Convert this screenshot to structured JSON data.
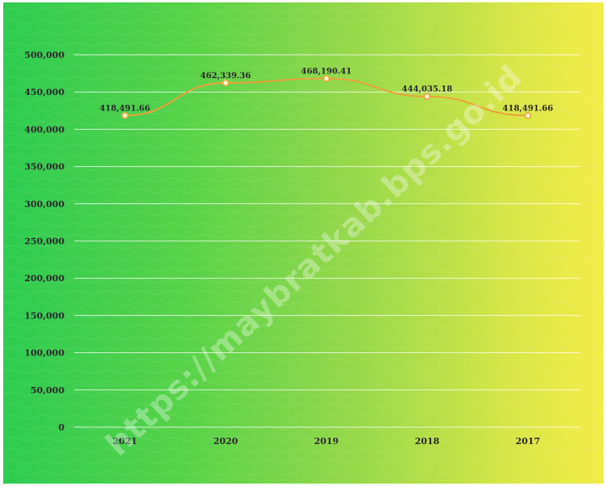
{
  "watermark": "https://maybratkab.bps.go.id",
  "colors": {
    "line": "#e8a33a",
    "marker_fill": "#fff6c8",
    "marker_stroke": "#e8a33a",
    "grid": "#ffffff"
  },
  "chart_data": {
    "type": "line",
    "categories": [
      "2021",
      "2020",
      "2019",
      "2018",
      "2017"
    ],
    "values": [
      418491.66,
      462339.36,
      468190.41,
      444035.18,
      418491.66
    ],
    "data_labels": [
      "418,491.66",
      "462,339.36",
      "468,190.41",
      "444,035.18",
      "418,491.66"
    ],
    "y_ticks": [
      "0",
      "50,000",
      "100,000",
      "150,000",
      "200,000",
      "250,000",
      "300,000",
      "350,000",
      "400,000",
      "450,000",
      "500,000"
    ],
    "ylim": [
      0,
      500000
    ],
    "grid": true,
    "legend": "none"
  }
}
